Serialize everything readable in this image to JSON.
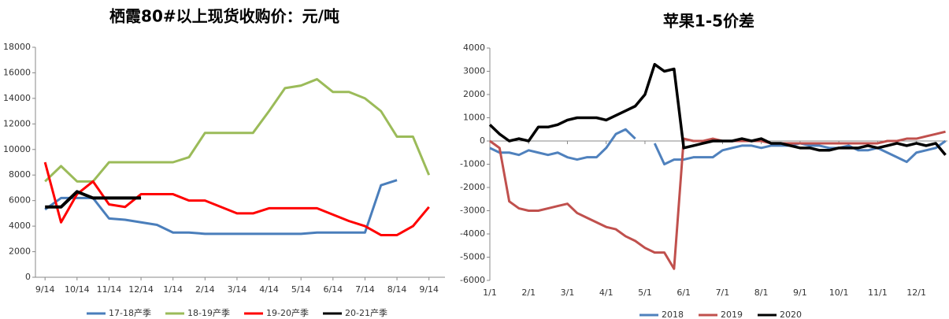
{
  "chart_data": [
    {
      "type": "line",
      "title": "栖霞80#以上现货收购价：元/吨",
      "x": [
        0,
        0.5,
        1,
        1.5,
        2,
        2.5,
        3,
        3.5,
        4,
        4.5,
        5,
        5.5,
        6,
        6.5,
        7,
        7.5,
        8,
        8.5,
        9,
        9.5,
        10,
        10.5,
        11,
        11.5,
        12
      ],
      "xlim": [
        -0.3,
        12.5
      ],
      "xticks": [
        {
          "value": 0,
          "label": "9/14"
        },
        {
          "value": 1,
          "label": "10/14"
        },
        {
          "value": 2,
          "label": "11/14"
        },
        {
          "value": 3,
          "label": "12/14"
        },
        {
          "value": 4,
          "label": "1/14"
        },
        {
          "value": 5,
          "label": "2/14"
        },
        {
          "value": 6,
          "label": "3/14"
        },
        {
          "value": 7,
          "label": "4/14"
        },
        {
          "value": 8,
          "label": "5/14"
        },
        {
          "value": 9,
          "label": "6/14"
        },
        {
          "value": 10,
          "label": "7/14"
        },
        {
          "value": 11,
          "label": "8/14"
        },
        {
          "value": 12,
          "label": "9/14"
        }
      ],
      "ylim": [
        0,
        18000
      ],
      "yticks": [
        0,
        2000,
        4000,
        6000,
        8000,
        10000,
        12000,
        14000,
        16000,
        18000
      ],
      "series": [
        {
          "name": "17-18产季",
          "color": "#4a7ebb",
          "values": [
            5300,
            6200,
            6200,
            6200,
            4600,
            4500,
            4300,
            4100,
            3500,
            3500,
            3400,
            3400,
            3400,
            3400,
            3400,
            3400,
            3400,
            3500,
            3500,
            3500,
            3500,
            7200,
            7600,
            null,
            null
          ]
        },
        {
          "name": "18-19产季",
          "color": "#9bbb59",
          "values": [
            7500,
            8700,
            7500,
            7500,
            9000,
            9000,
            9000,
            9000,
            9000,
            9400,
            11300,
            11300,
            11300,
            11300,
            13000,
            14800,
            15000,
            15500,
            14500,
            14500,
            14000,
            13000,
            11000,
            11000,
            8000
          ]
        },
        {
          "name": "19-20产季",
          "color": "#ff0000",
          "values": [
            9000,
            4300,
            6500,
            7500,
            5700,
            5500,
            6500,
            6500,
            6500,
            6000,
            6000,
            5500,
            5000,
            5000,
            5400,
            5400,
            5400,
            5400,
            4900,
            4400,
            4000,
            3300,
            3300,
            4000,
            5500
          ]
        },
        {
          "name": "20-21产季",
          "color": "#000000",
          "values": [
            5500,
            5500,
            6700,
            6200,
            6200,
            6200,
            6200,
            null,
            null,
            null,
            null,
            null,
            null,
            null,
            null,
            null,
            null,
            null,
            null,
            null,
            null,
            null,
            null,
            null,
            null
          ]
        }
      ]
    },
    {
      "type": "line",
      "title": "苹果1-5价差",
      "x": [
        0,
        0.25,
        0.5,
        0.75,
        1,
        1.25,
        1.5,
        1.75,
        2,
        2.25,
        2.5,
        2.75,
        3,
        3.25,
        3.5,
        3.75,
        4,
        4.25,
        4.5,
        4.75,
        5,
        5.25,
        5.5,
        5.75,
        6,
        6.25,
        6.5,
        6.75,
        7,
        7.25,
        7.5,
        7.75,
        8,
        8.25,
        8.5,
        8.75,
        9,
        9.25,
        9.5,
        9.75,
        10,
        10.25,
        10.5,
        10.75,
        11,
        11.25,
        11.5,
        11.75
      ],
      "xlim": [
        0,
        11.8
      ],
      "xticks": [
        {
          "value": 0,
          "label": "1/1"
        },
        {
          "value": 1,
          "label": "2/1"
        },
        {
          "value": 2,
          "label": "3/1"
        },
        {
          "value": 3,
          "label": "4/1"
        },
        {
          "value": 4,
          "label": "5/1"
        },
        {
          "value": 5,
          "label": "6/1"
        },
        {
          "value": 6,
          "label": "7/1"
        },
        {
          "value": 7,
          "label": "8/1"
        },
        {
          "value": 8,
          "label": "9/1"
        },
        {
          "value": 9,
          "label": "10/1"
        },
        {
          "value": 10,
          "label": "11/1"
        },
        {
          "value": 11,
          "label": "12/1"
        }
      ],
      "ylim": [
        -6000,
        4000
      ],
      "yticks": [
        -6000,
        -5000,
        -4000,
        -3000,
        -2000,
        -1000,
        0,
        1000,
        2000,
        3000,
        4000
      ],
      "series": [
        {
          "name": "2018",
          "color": "#4f81bd",
          "values": [
            -300,
            -500,
            -500,
            -600,
            -400,
            -500,
            -600,
            -500,
            -700,
            -800,
            -700,
            -700,
            -300,
            300,
            500,
            100,
            null,
            -100,
            -1000,
            -800,
            -800,
            -700,
            -700,
            -700,
            -400,
            -300,
            -200,
            -200,
            -300,
            -200,
            -200,
            -200,
            -100,
            -200,
            -200,
            -300,
            -300,
            -200,
            -400,
            -400,
            -300,
            -500,
            -700,
            -900,
            -500,
            -400,
            -300,
            0
          ]
        },
        {
          "name": "2019",
          "color": "#c0504d",
          "values": [
            0,
            -300,
            -2600,
            -2900,
            -3000,
            -3000,
            -2900,
            -2800,
            -2700,
            -3100,
            -3300,
            -3500,
            -3700,
            -3800,
            -4100,
            -4300,
            -4600,
            -4800,
            -4800,
            -5500,
            100,
            0,
            0,
            100,
            0,
            0,
            0,
            0,
            0,
            -100,
            -100,
            -100,
            -100,
            -100,
            -100,
            -100,
            -100,
            -100,
            -100,
            -100,
            -100,
            0,
            0,
            100,
            100,
            200,
            300,
            400
          ]
        },
        {
          "name": "2020",
          "color": "#000000",
          "values": [
            700,
            300,
            0,
            100,
            0,
            600,
            600,
            700,
            900,
            1000,
            1000,
            1000,
            900,
            1100,
            1300,
            1500,
            2000,
            3300,
            3000,
            3100,
            -300,
            -200,
            -100,
            0,
            0,
            0,
            100,
            0,
            100,
            -100,
            -100,
            -200,
            -300,
            -300,
            -400,
            -400,
            -300,
            -300,
            -300,
            -200,
            -300,
            -200,
            -100,
            -200,
            -100,
            -200,
            -100,
            -600
          ]
        }
      ]
    }
  ]
}
